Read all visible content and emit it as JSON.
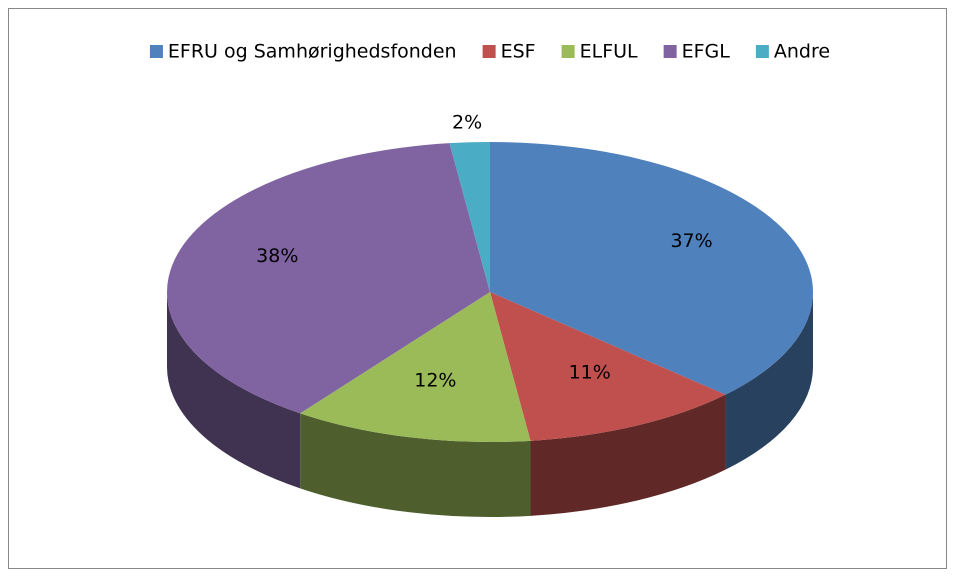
{
  "chart_data": {
    "type": "pie",
    "categories": [
      "EFRU og Samhørighedsfonden",
      "ESF",
      "ELFUL",
      "EFGL",
      "Andre"
    ],
    "values": [
      37,
      11,
      12,
      38,
      2
    ],
    "value_labels": [
      "37%",
      "11%",
      "12%",
      "38%",
      "2%"
    ],
    "colors": [
      "#4f81bd",
      "#c0504d",
      "#9bbb59",
      "#8064a2",
      "#4bacc6"
    ],
    "legend": "top"
  }
}
